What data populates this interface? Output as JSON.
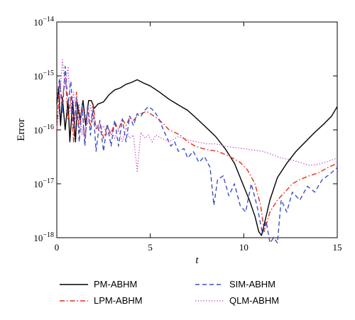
{
  "chart_data": {
    "type": "line",
    "title": "",
    "xlabel": "t",
    "ylabel": "Error",
    "xlim": [
      0,
      15
    ],
    "ylim": [
      1e-18,
      1e-14
    ],
    "y_scale": "log",
    "grid": false,
    "legend_position": "bottom",
    "x_ticks": [
      {
        "value": 0,
        "label": "0"
      },
      {
        "value": 5,
        "label": "5"
      },
      {
        "value": 10,
        "label": "10"
      },
      {
        "value": 15,
        "label": "15"
      }
    ],
    "y_ticks": [
      {
        "value": 1e-18,
        "base": "10",
        "exp": "−18"
      },
      {
        "value": 1e-17,
        "base": "10",
        "exp": "−17"
      },
      {
        "value": 1e-16,
        "base": "10",
        "exp": "−16"
      },
      {
        "value": 1e-15,
        "base": "10",
        "exp": "−15"
      },
      {
        "value": 1e-14,
        "base": "10",
        "exp": "−14"
      }
    ],
    "series": [
      {
        "name": "PM-ABHM",
        "color": "#000000",
        "dash": "solid",
        "x": [
          0.0,
          0.1,
          0.2,
          0.3,
          0.45,
          0.6,
          0.7,
          0.85,
          1.0,
          1.1,
          1.25,
          1.4,
          1.55,
          1.7,
          1.85,
          2.0,
          2.2,
          2.5,
          2.8,
          3.1,
          3.4,
          3.7,
          4.0,
          4.3,
          4.6,
          5.0,
          5.5,
          6.0,
          6.5,
          7.0,
          7.5,
          8.0,
          8.5,
          9.0,
          9.5,
          10.0,
          10.3,
          10.6,
          10.8,
          10.95,
          11.1,
          11.4,
          11.8,
          12.3,
          12.8,
          13.3,
          13.8,
          14.3,
          14.7,
          15.0
        ],
        "y": [
          3e-16,
          6e-16,
          1.2e-16,
          4e-16,
          1e-16,
          3.5e-16,
          6e-17,
          3.5e-16,
          6e-17,
          3.2e-16,
          1.5e-16,
          3.5e-16,
          1.2e-16,
          3.5e-16,
          3.5e-16,
          2.5e-16,
          3e-16,
          3.3e-16,
          4.5e-16,
          5.5e-16,
          6e-16,
          7e-16,
          7.6e-16,
          8.5e-16,
          7.5e-16,
          6.5e-16,
          5e-16,
          3.7e-16,
          2.9e-16,
          2.3e-16,
          1.6e-16,
          1.1e-16,
          7.5e-17,
          4.5e-17,
          2.4e-17,
          9e-18,
          5e-18,
          2.5e-18,
          1.3e-18,
          1.1e-18,
          1.8e-18,
          5e-18,
          1.3e-17,
          2.4e-17,
          4e-17,
          6e-17,
          9e-17,
          1.3e-16,
          1.8e-16,
          2.7e-16
        ]
      },
      {
        "name": "LPM-ABHM",
        "color": "#e0301e",
        "dash": "dashdot",
        "x": [
          0.0,
          0.15,
          0.3,
          0.45,
          0.6,
          0.75,
          0.9,
          1.05,
          1.2,
          1.35,
          1.5,
          1.65,
          1.8,
          1.95,
          2.1,
          2.3,
          2.5,
          2.7,
          2.9,
          3.1,
          3.3,
          3.5,
          3.7,
          3.9,
          4.1,
          4.3,
          4.5,
          4.8,
          5.1,
          5.4,
          5.7,
          6.0,
          6.3,
          6.6,
          7.0,
          7.4,
          7.8,
          8.2,
          8.6,
          9.0,
          9.4,
          9.8,
          10.2,
          10.6,
          10.9,
          11.1,
          11.4,
          11.8,
          12.2,
          12.6,
          13.0,
          13.5,
          14.0,
          14.5,
          15.0
        ],
        "y": [
          1e-16,
          8e-16,
          3e-16,
          1.2e-15,
          1.5e-16,
          4e-16,
          6e-17,
          5e-16,
          9e-17,
          2.8e-16,
          6e-17,
          2.5e-16,
          1.2e-16,
          3e-16,
          1e-16,
          1.4e-16,
          7e-17,
          1.2e-16,
          8e-17,
          1.4e-16,
          1e-16,
          1.6e-16,
          1.2e-16,
          1.7e-16,
          1.5e-16,
          1.8e-16,
          2e-16,
          2.2e-16,
          1.9e-16,
          1.6e-16,
          1.3e-16,
          1e-16,
          9e-17,
          8e-17,
          6e-17,
          5e-17,
          4.5e-17,
          4.2e-17,
          4e-17,
          3.5e-17,
          3e-17,
          2.5e-17,
          1.8e-17,
          1e-17,
          4e-18,
          1.3e-18,
          3e-18,
          5e-18,
          7e-18,
          1e-17,
          1.2e-17,
          1.4e-17,
          1.6e-17,
          2e-17,
          2.4e-17
        ]
      },
      {
        "name": "SIM-ABHM",
        "color": "#3b4fc4",
        "dash": "dashed",
        "x": [
          0.0,
          0.15,
          0.3,
          0.45,
          0.6,
          0.75,
          0.9,
          1.05,
          1.2,
          1.35,
          1.5,
          1.65,
          1.8,
          1.95,
          2.1,
          2.3,
          2.5,
          2.7,
          2.9,
          3.1,
          3.3,
          3.5,
          3.7,
          3.9,
          4.1,
          4.3,
          4.5,
          4.7,
          4.9,
          5.1,
          5.3,
          5.5,
          5.7,
          5.9,
          6.1,
          6.3,
          6.5,
          6.8,
          7.0,
          7.3,
          7.6,
          7.9,
          8.2,
          8.4,
          8.6,
          8.9,
          9.2,
          9.5,
          9.8,
          10.1,
          10.4,
          10.7,
          11.0,
          11.2,
          11.4,
          11.6,
          11.8,
          12.0,
          12.3,
          12.6,
          13.0,
          13.4,
          13.8,
          14.2,
          14.6,
          15.0
        ],
        "y": [
          4e-16,
          9e-16,
          2e-16,
          1.5e-15,
          3e-16,
          8e-16,
          1e-16,
          4e-16,
          6e-17,
          3e-16,
          5e-17,
          3e-16,
          8e-17,
          2.5e-16,
          4e-17,
          1.5e-16,
          4e-17,
          1.3e-16,
          5e-17,
          1.5e-16,
          5e-17,
          1.6e-16,
          6e-17,
          1.8e-16,
          1.2e-16,
          2e-16,
          1.8e-16,
          2.3e-16,
          2.7e-16,
          2.4e-16,
          2e-16,
          1.5e-16,
          1e-16,
          7e-17,
          5e-17,
          6e-17,
          4e-17,
          4.5e-17,
          3e-17,
          4e-17,
          2.5e-17,
          3.2e-17,
          2e-17,
          4e-18,
          1.2e-17,
          1.4e-17,
          6e-18,
          1e-17,
          4e-18,
          3e-18,
          1e-17,
          4e-18,
          1.2e-18,
          2e-18,
          8e-19,
          1e-18,
          8e-19,
          5e-18,
          3e-18,
          7e-18,
          5e-18,
          9e-18,
          7e-18,
          1.2e-17,
          1.5e-17,
          2e-17
        ]
      },
      {
        "name": "QLM-ABHM",
        "color": "#c048c0",
        "dash": "dotted",
        "x": [
          0.0,
          0.15,
          0.3,
          0.45,
          0.6,
          0.75,
          0.9,
          1.05,
          1.2,
          1.35,
          1.5,
          1.65,
          1.8,
          1.95,
          2.1,
          2.3,
          2.5,
          2.7,
          2.9,
          3.1,
          3.3,
          3.5,
          3.7,
          3.9,
          4.1,
          4.3,
          4.5,
          4.7,
          4.9,
          5.1,
          5.3,
          5.6,
          6.0,
          6.5,
          7.0,
          7.5,
          8.0,
          8.5,
          9.0,
          9.5,
          10.0,
          10.5,
          11.0,
          11.5,
          12.0,
          12.5,
          13.0,
          13.5,
          14.0,
          14.5,
          15.0
        ],
        "y": [
          1e-16,
          3e-16,
          2e-15,
          6e-16,
          1.5e-15,
          2e-16,
          5e-16,
          1.5e-16,
          3e-16,
          8e-17,
          2e-16,
          1.3e-16,
          3e-16,
          1.5e-16,
          1.2e-16,
          9e-17,
          1.2e-16,
          8e-17,
          1e-16,
          7e-17,
          1e-16,
          6e-17,
          1.1e-16,
          7e-17,
          8e-17,
          1.7e-17,
          9e-17,
          7e-17,
          8e-17,
          6e-17,
          8e-17,
          7e-17,
          6e-17,
          7.5e-17,
          6.5e-17,
          6e-17,
          5.5e-17,
          5.5e-17,
          5e-17,
          4.7e-17,
          4.5e-17,
          4.2e-17,
          4e-17,
          3.5e-17,
          3e-17,
          2.8e-17,
          2.5e-17,
          2.2e-17,
          2.3e-17,
          2.6e-17,
          3e-17
        ]
      }
    ]
  }
}
